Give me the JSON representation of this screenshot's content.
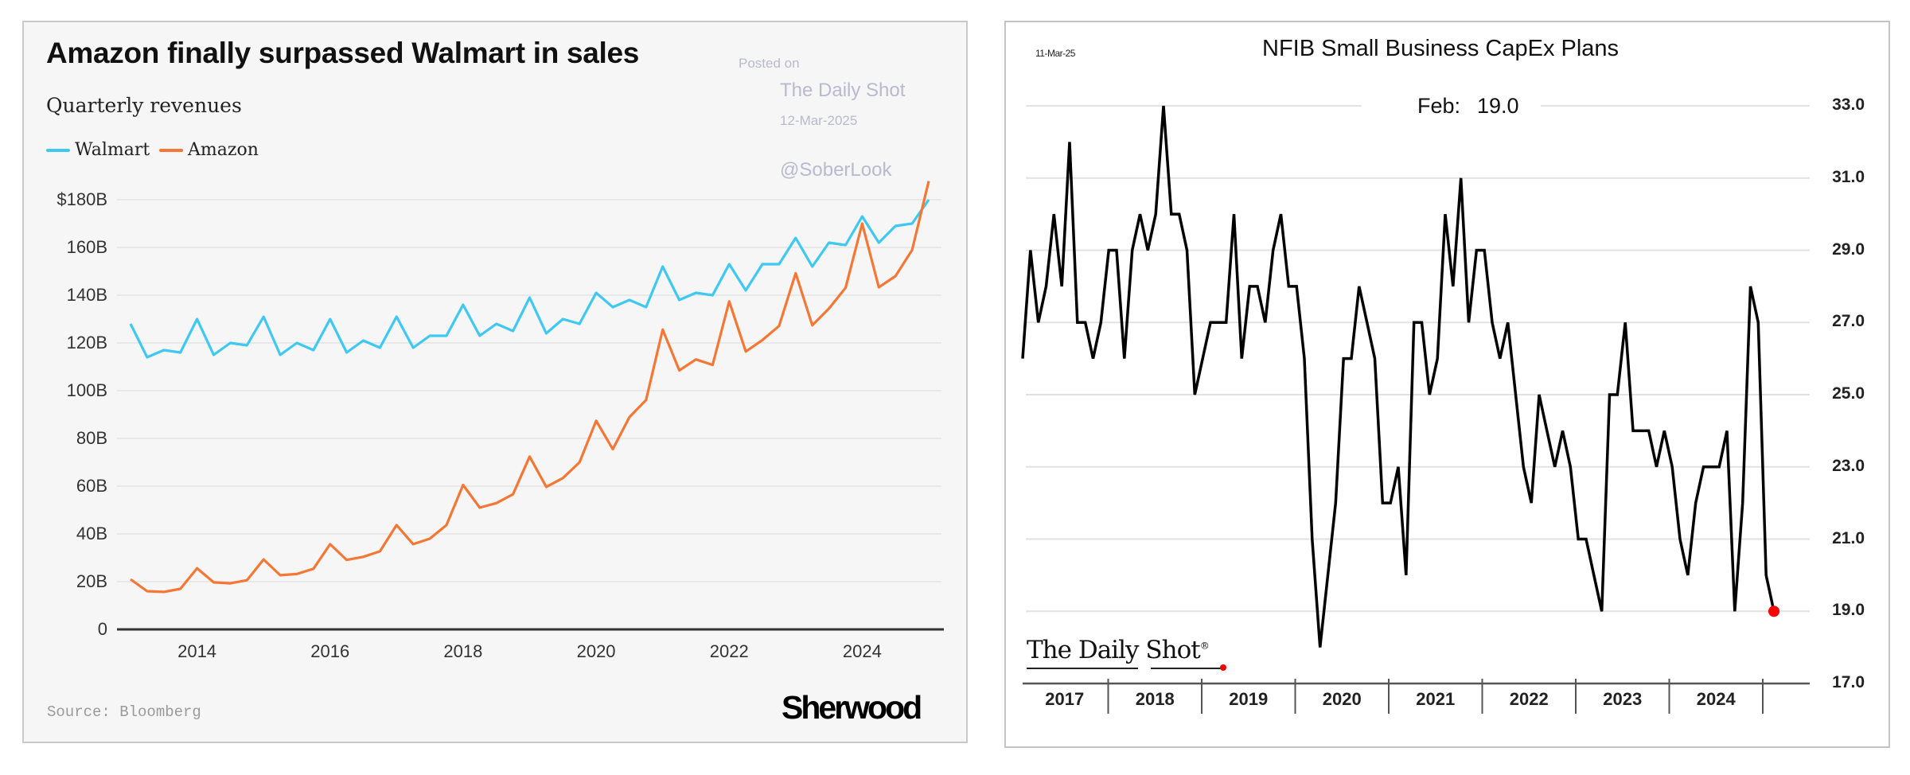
{
  "left": {
    "title": "Amazon finally surpassed Walmart in sales",
    "subtitle": "Quarterly revenues",
    "watermark": {
      "posted_on": "Posted on",
      "site": "The Daily Shot",
      "date": "12-Mar-2025",
      "handle": "@SoberLook"
    },
    "source": "Source: Bloomberg",
    "brand": "Sherwood"
  },
  "right": {
    "title": "NFIB Small Business CapEx Plans",
    "date": "11-Mar-25",
    "annotation_label": "Feb:",
    "annotation_value": "19.0",
    "logo": "The Daily Shot",
    "logo_mark": "®"
  },
  "chart_data": [
    {
      "type": "line",
      "title": "Amazon finally surpassed Walmart in sales",
      "subtitle": "Quarterly revenues",
      "xlabel": "",
      "ylabel": "",
      "x_start": "2013 Q1",
      "x_end": "2025 Q1",
      "frequency": "quarterly",
      "xticks": [
        "2014",
        "2016",
        "2018",
        "2020",
        "2022",
        "2024"
      ],
      "xtick_values": [
        2014,
        2016,
        2018,
        2020,
        2022,
        2024
      ],
      "yticks": [
        "0",
        "20B",
        "40B",
        "60B",
        "80B",
        "100B",
        "120B",
        "140B",
        "160B",
        "$180B"
      ],
      "ytick_values": [
        0,
        20,
        40,
        60,
        80,
        100,
        120,
        140,
        160,
        180
      ],
      "ylim": [
        0,
        190
      ],
      "xlim": [
        2013,
        2025
      ],
      "grid": true,
      "legend_position": "top-left",
      "series": [
        {
          "name": "Walmart",
          "color": "#3ec8f2",
          "values": [
            128,
            114,
            117,
            116,
            130,
            115,
            120,
            119,
            131,
            115,
            120,
            117,
            130,
            116,
            121,
            118,
            131,
            118,
            123,
            123,
            136,
            123,
            128,
            125,
            139,
            124,
            130,
            128,
            141,
            135,
            138,
            135,
            152,
            138,
            141,
            140,
            153,
            142,
            153,
            153,
            164,
            152,
            162,
            161,
            173,
            162,
            169,
            170,
            180
          ]
        },
        {
          "name": "Amazon",
          "color": "#f47735",
          "values": [
            21,
            16,
            15.7,
            17,
            25.6,
            19.7,
            19.3,
            20.6,
            29.3,
            22.7,
            23.2,
            25.4,
            35.7,
            29.1,
            30.4,
            32.7,
            43.7,
            35.7,
            38,
            43.7,
            60.5,
            51,
            52.9,
            56.6,
            72.4,
            59.7,
            63.4,
            70,
            87.4,
            75.5,
            88.9,
            96.1,
            125.6,
            108.5,
            113.1,
            110.8,
            137.4,
            116.4,
            121.2,
            127.1,
            149.2,
            127.4,
            134.4,
            143.1,
            170,
            143.3,
            148,
            158.9,
            187.8
          ]
        }
      ]
    },
    {
      "type": "line",
      "title": "NFIB Small Business CapEx Plans",
      "xlabel": "",
      "ylabel": "",
      "x_start": "2017-02",
      "x_end": "2025-02",
      "frequency": "monthly",
      "xticks": [
        "2017",
        "2018",
        "2019",
        "2020",
        "2021",
        "2022",
        "2023",
        "2024"
      ],
      "yticks": [
        "17.0",
        "19.0",
        "21.0",
        "23.0",
        "25.0",
        "27.0",
        "29.0",
        "31.0",
        "33.0"
      ],
      "ytick_values": [
        17,
        19,
        21,
        23,
        25,
        27,
        29,
        31,
        33
      ],
      "ylim": [
        17,
        33
      ],
      "grid": true,
      "series": [
        {
          "name": "CapEx Plans",
          "color": "#000000",
          "last_point_color": "#ff0000",
          "values": [
            26,
            29,
            27,
            28,
            30,
            28,
            32,
            27,
            27,
            26,
            27,
            29,
            29,
            26,
            29,
            30,
            29,
            30,
            33,
            30,
            30,
            29,
            25,
            26,
            27,
            27,
            27,
            30,
            26,
            28,
            28,
            27,
            29,
            30,
            28,
            28,
            26,
            21,
            18,
            20,
            22,
            26,
            26,
            28,
            27,
            26,
            22,
            22,
            23,
            20,
            27,
            27,
            25,
            26,
            30,
            28,
            31,
            27,
            29,
            29,
            27,
            26,
            27,
            25,
            23,
            22,
            25,
            24,
            23,
            24,
            23,
            21,
            21,
            20,
            19,
            25,
            25,
            27,
            24,
            24,
            24,
            23,
            24,
            23,
            21,
            20,
            22,
            23,
            23,
            23,
            24,
            19,
            22,
            28,
            27,
            20,
            19
          ]
        }
      ]
    }
  ]
}
